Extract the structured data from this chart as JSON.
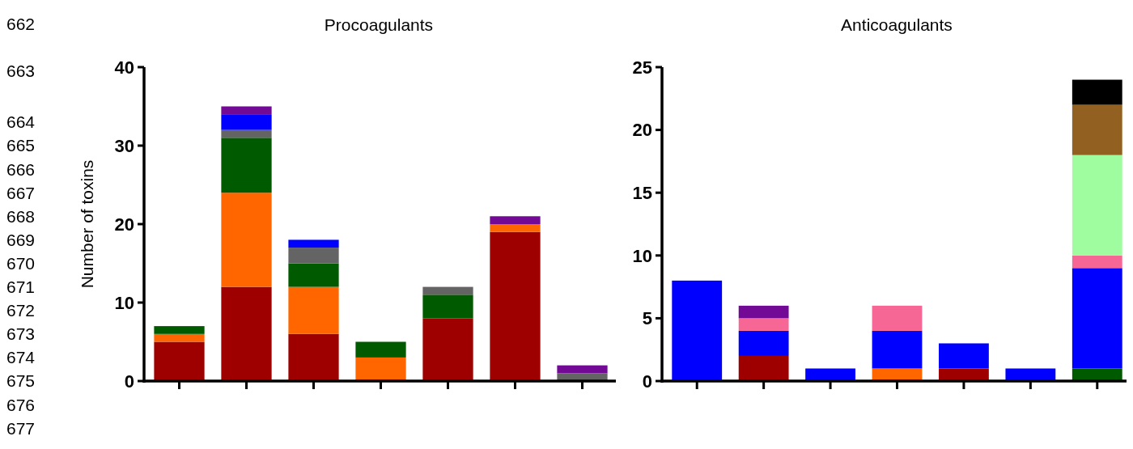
{
  "chart_data": [
    {
      "type": "bar",
      "title": "Procoagulants",
      "ylabel": "Number of toxins",
      "stacked": true,
      "categories": [
        null,
        null,
        null,
        null,
        null,
        null,
        null
      ],
      "ylim": [
        0,
        40
      ],
      "yticks": [
        0,
        10,
        20,
        30,
        40
      ],
      "annotations": [
        "662",
        "663",
        "664",
        "665",
        "666",
        "667",
        "668",
        "669",
        "670",
        "671",
        "672",
        "673",
        "674",
        "675",
        "676",
        "677"
      ],
      "series": [
        {
          "color": "#9e0000",
          "values": [
            5,
            12,
            6,
            null,
            8,
            19,
            null
          ]
        },
        {
          "color": "#ff6600",
          "values": [
            1,
            12,
            6,
            3,
            null,
            1,
            null
          ]
        },
        {
          "color": "#005a00",
          "values": [
            1,
            7,
            3,
            2,
            3,
            null,
            null
          ]
        },
        {
          "color": "#646464",
          "values": [
            null,
            1,
            2,
            null,
            1,
            null,
            1
          ]
        },
        {
          "color": "#0000ff",
          "values": [
            null,
            2,
            1,
            null,
            null,
            null,
            null
          ]
        },
        {
          "color": "#720a96",
          "values": [
            null,
            1,
            null,
            null,
            null,
            1,
            1
          ]
        }
      ]
    },
    {
      "type": "bar",
      "title": "Anticoagulants",
      "stacked": true,
      "categories": [
        null,
        null,
        null,
        null,
        null,
        null,
        null
      ],
      "ylim": [
        0,
        25
      ],
      "yticks": [
        0,
        5,
        10,
        15,
        20,
        25
      ],
      "series": [
        {
          "color": "#005a00",
          "values": [
            null,
            null,
            null,
            null,
            null,
            null,
            1
          ]
        },
        {
          "color": "#9e0000",
          "values": [
            null,
            2,
            null,
            null,
            1,
            null,
            null
          ]
        },
        {
          "color": "#ff6600",
          "values": [
            null,
            null,
            null,
            1,
            null,
            null,
            null
          ]
        },
        {
          "color": "#0000ff",
          "values": [
            8,
            2,
            1,
            3,
            2,
            1,
            8
          ]
        },
        {
          "color": "#f76795",
          "values": [
            null,
            1,
            null,
            2,
            null,
            null,
            1
          ]
        },
        {
          "color": "#720a96",
          "values": [
            null,
            1,
            null,
            null,
            null,
            null,
            null
          ]
        },
        {
          "color": "#a0fd9f",
          "values": [
            null,
            null,
            null,
            null,
            null,
            null,
            8
          ]
        },
        {
          "color": "#926121",
          "values": [
            null,
            null,
            null,
            null,
            null,
            null,
            4
          ]
        },
        {
          "color": "#000000",
          "values": [
            null,
            null,
            null,
            null,
            null,
            null,
            2
          ]
        }
      ]
    }
  ]
}
